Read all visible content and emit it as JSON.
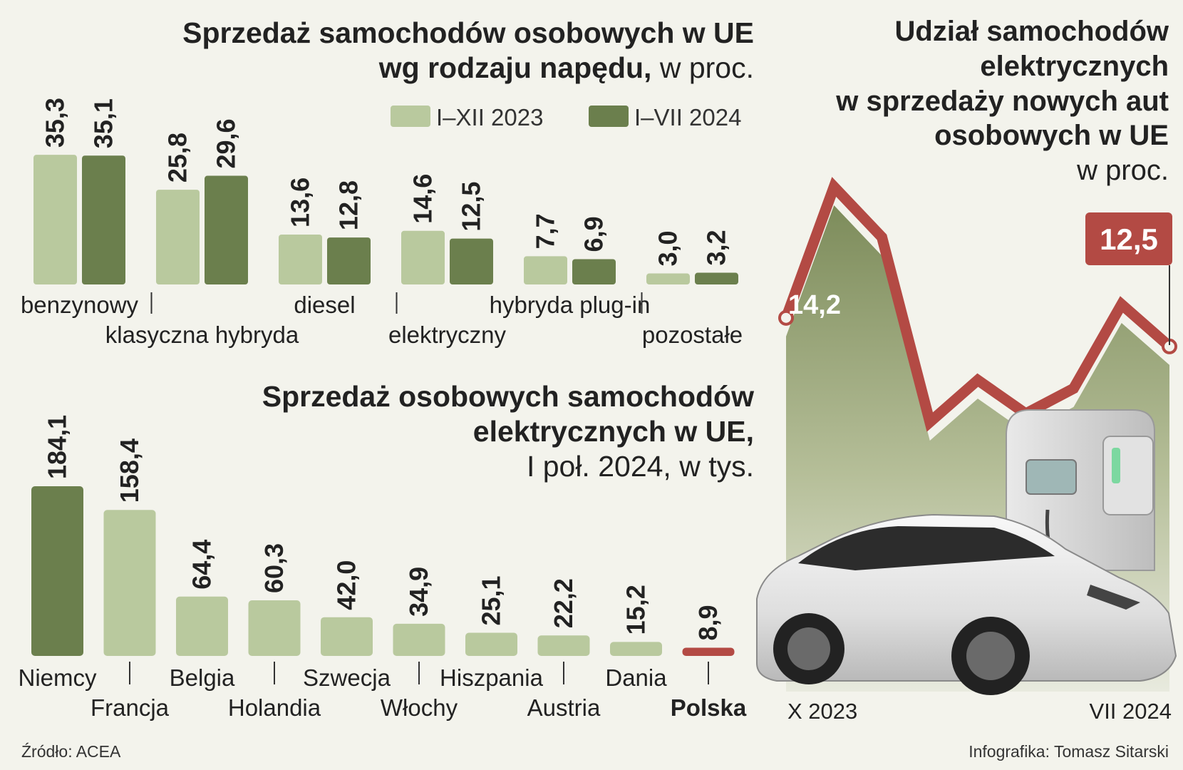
{
  "chart_data": [
    {
      "type": "bar",
      "title": "Sprzedaż samochodów osobowych w UE wg rodzaju napędu,",
      "title_line1": "Sprzedaż samochodów osobowych w UE",
      "title_line2": "wg rodzaju napędu,",
      "unit": "w proc.",
      "legend_placement": "top-right",
      "categories": [
        "benzynowy",
        "klasyczna hybryda",
        "diesel",
        "elektryczny",
        "hybryda plug-in",
        "pozostałe"
      ],
      "series": [
        {
          "name": "I–XII 2023",
          "color": "#b9c99e",
          "values": [
            35.3,
            25.8,
            13.6,
            14.6,
            7.7,
            3.0
          ],
          "labels": [
            "35,3",
            "25,8",
            "13,6",
            "14,6",
            "7,7",
            "3,0"
          ]
        },
        {
          "name": "I–VII 2024",
          "color": "#6b7f4d",
          "values": [
            35.1,
            29.6,
            12.8,
            12.5,
            6.9,
            3.2
          ],
          "labels": [
            "35,1",
            "29,6",
            "12,8",
            "12,5",
            "6,9",
            "3,2"
          ]
        }
      ],
      "ylim": [
        0,
        40
      ],
      "grid": false
    },
    {
      "type": "bar",
      "title_line1": "Sprzedaż osobowych samochodów",
      "title_line2": "elektrycznych w UE,",
      "unit": "I poł. 2024, w tys.",
      "categories": [
        "Niemcy",
        "Francja",
        "Belgia",
        "Holandia",
        "Szwecja",
        "Włochy",
        "Hiszpania",
        "Austria",
        "Dania",
        "Polska"
      ],
      "values": [
        184.1,
        158.4,
        64.4,
        60.3,
        42.0,
        34.9,
        25.1,
        22.2,
        15.2,
        8.9
      ],
      "labels": [
        "184,1",
        "158,4",
        "64,4",
        "60,3",
        "42,0",
        "34,9",
        "25,1",
        "22,2",
        "15,2",
        "8,9"
      ],
      "colors": [
        "#6b7f4d",
        "#b9c99e",
        "#b9c99e",
        "#b9c99e",
        "#b9c99e",
        "#b9c99e",
        "#b9c99e",
        "#b9c99e",
        "#b9c99e",
        "#b34a44"
      ],
      "highlight": "Polska",
      "ylim": [
        0,
        200
      ],
      "grid": false
    },
    {
      "type": "line",
      "title_line1": "Udział samochodów",
      "title_line2": "elektrycznych",
      "title_line3": "w sprzedaży nowych aut",
      "title_line4": "osobowych w UE",
      "unit": "w proc.",
      "x_start_label": "X 2023",
      "x_end_label": "VII 2024",
      "values": [
        14.2,
        22.0,
        19.0,
        8.0,
        10.5,
        8.5,
        10.0,
        15.0,
        12.5
      ],
      "first_label": "14,2",
      "last_label": "12,5",
      "line_color": "#b34a44",
      "ylim": [
        4,
        25
      ]
    }
  ],
  "footer": {
    "source": "Źródło: ACEA",
    "credit": "Infografika: Tomasz Sitarski"
  }
}
